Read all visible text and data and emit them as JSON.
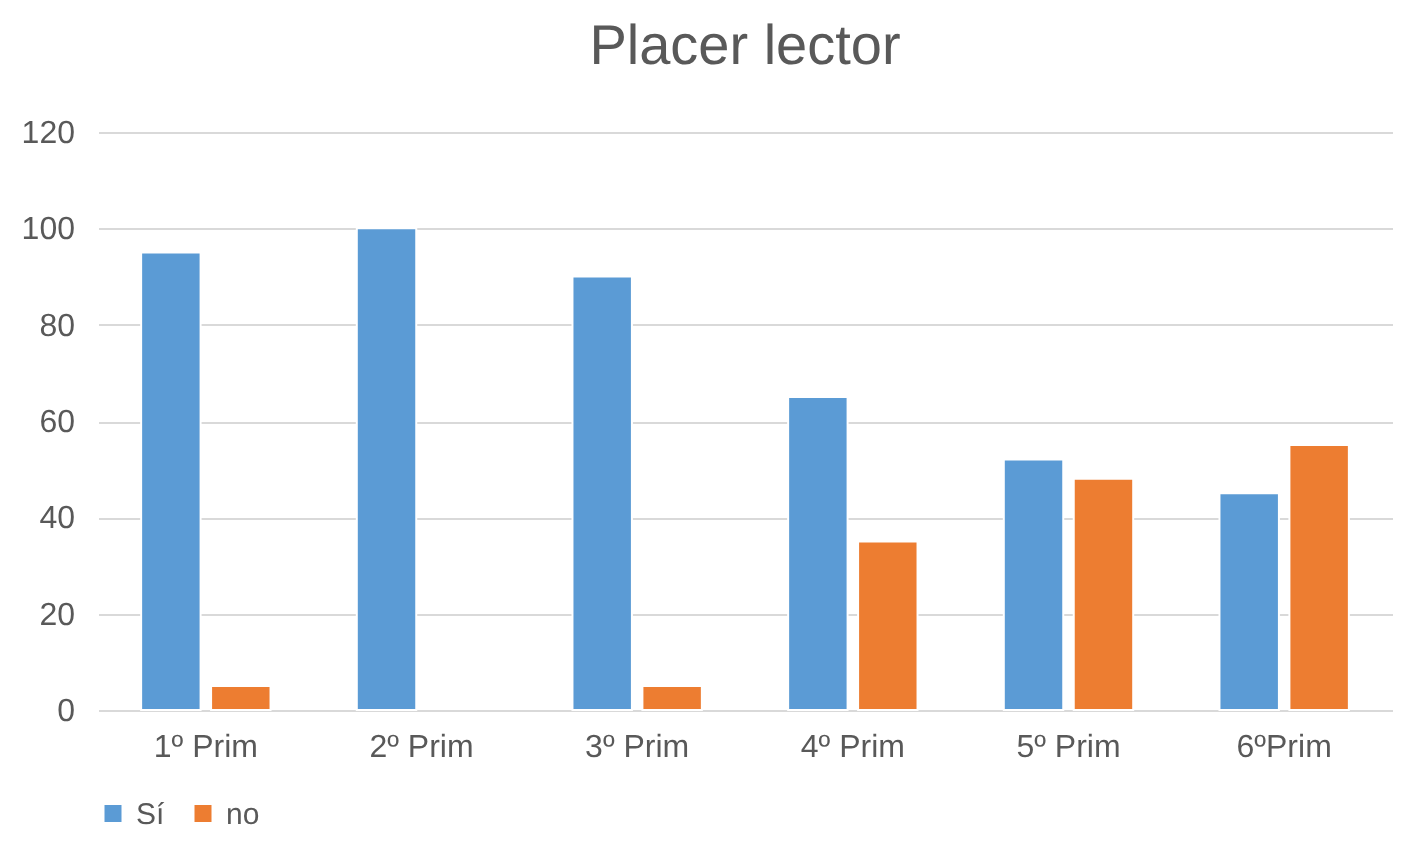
{
  "chart_data": {
    "type": "bar",
    "title": "Placer lector",
    "categories": [
      "1º Prim",
      "2º Prim",
      "3º Prim",
      "4º Prim",
      "5º Prim",
      "6ºPrim"
    ],
    "series": [
      {
        "name": "Sí",
        "color": "#5b9bd5",
        "values": [
          95,
          100,
          90,
          65,
          52,
          45
        ]
      },
      {
        "name": "no",
        "color": "#ed7d31",
        "values": [
          5,
          null,
          5,
          35,
          48,
          55
        ]
      }
    ],
    "ylim": [
      0,
      120
    ],
    "yticks": [
      0,
      20,
      40,
      60,
      80,
      100,
      120
    ],
    "grid": "y",
    "legend": "bottom"
  }
}
